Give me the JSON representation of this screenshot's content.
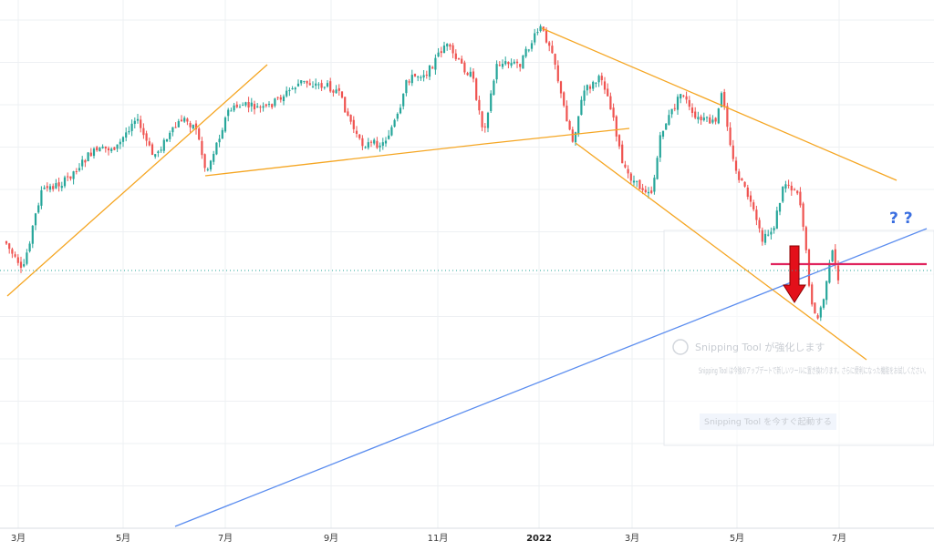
{
  "chart_data": {
    "type": "candlestick",
    "x_tick_labels": [
      "3月",
      "5月",
      "7月",
      "9月",
      "11月",
      "2022",
      "3月",
      "5月",
      "7月"
    ],
    "bold_tick": "2022",
    "annotation_text": "? ?",
    "overlay_notification": {
      "title": "Snipping Tool が強化します",
      "body": "Snipping Tool は今後のアップデートで新しいツールに置き換わります。さらに便利になった機能をお試しください。",
      "button": "Snipping Tool を今すぐ起動する"
    },
    "colors": {
      "up": "#26a69a",
      "down": "#ef5350",
      "trendline": "#f5a623",
      "trendline_blue": "#5b8def",
      "horizontal_line": "#e0245e",
      "arrow": "#e3101a",
      "question_marks": "#3b6fe0"
    },
    "grid": true,
    "price_axis_visible": false
  }
}
